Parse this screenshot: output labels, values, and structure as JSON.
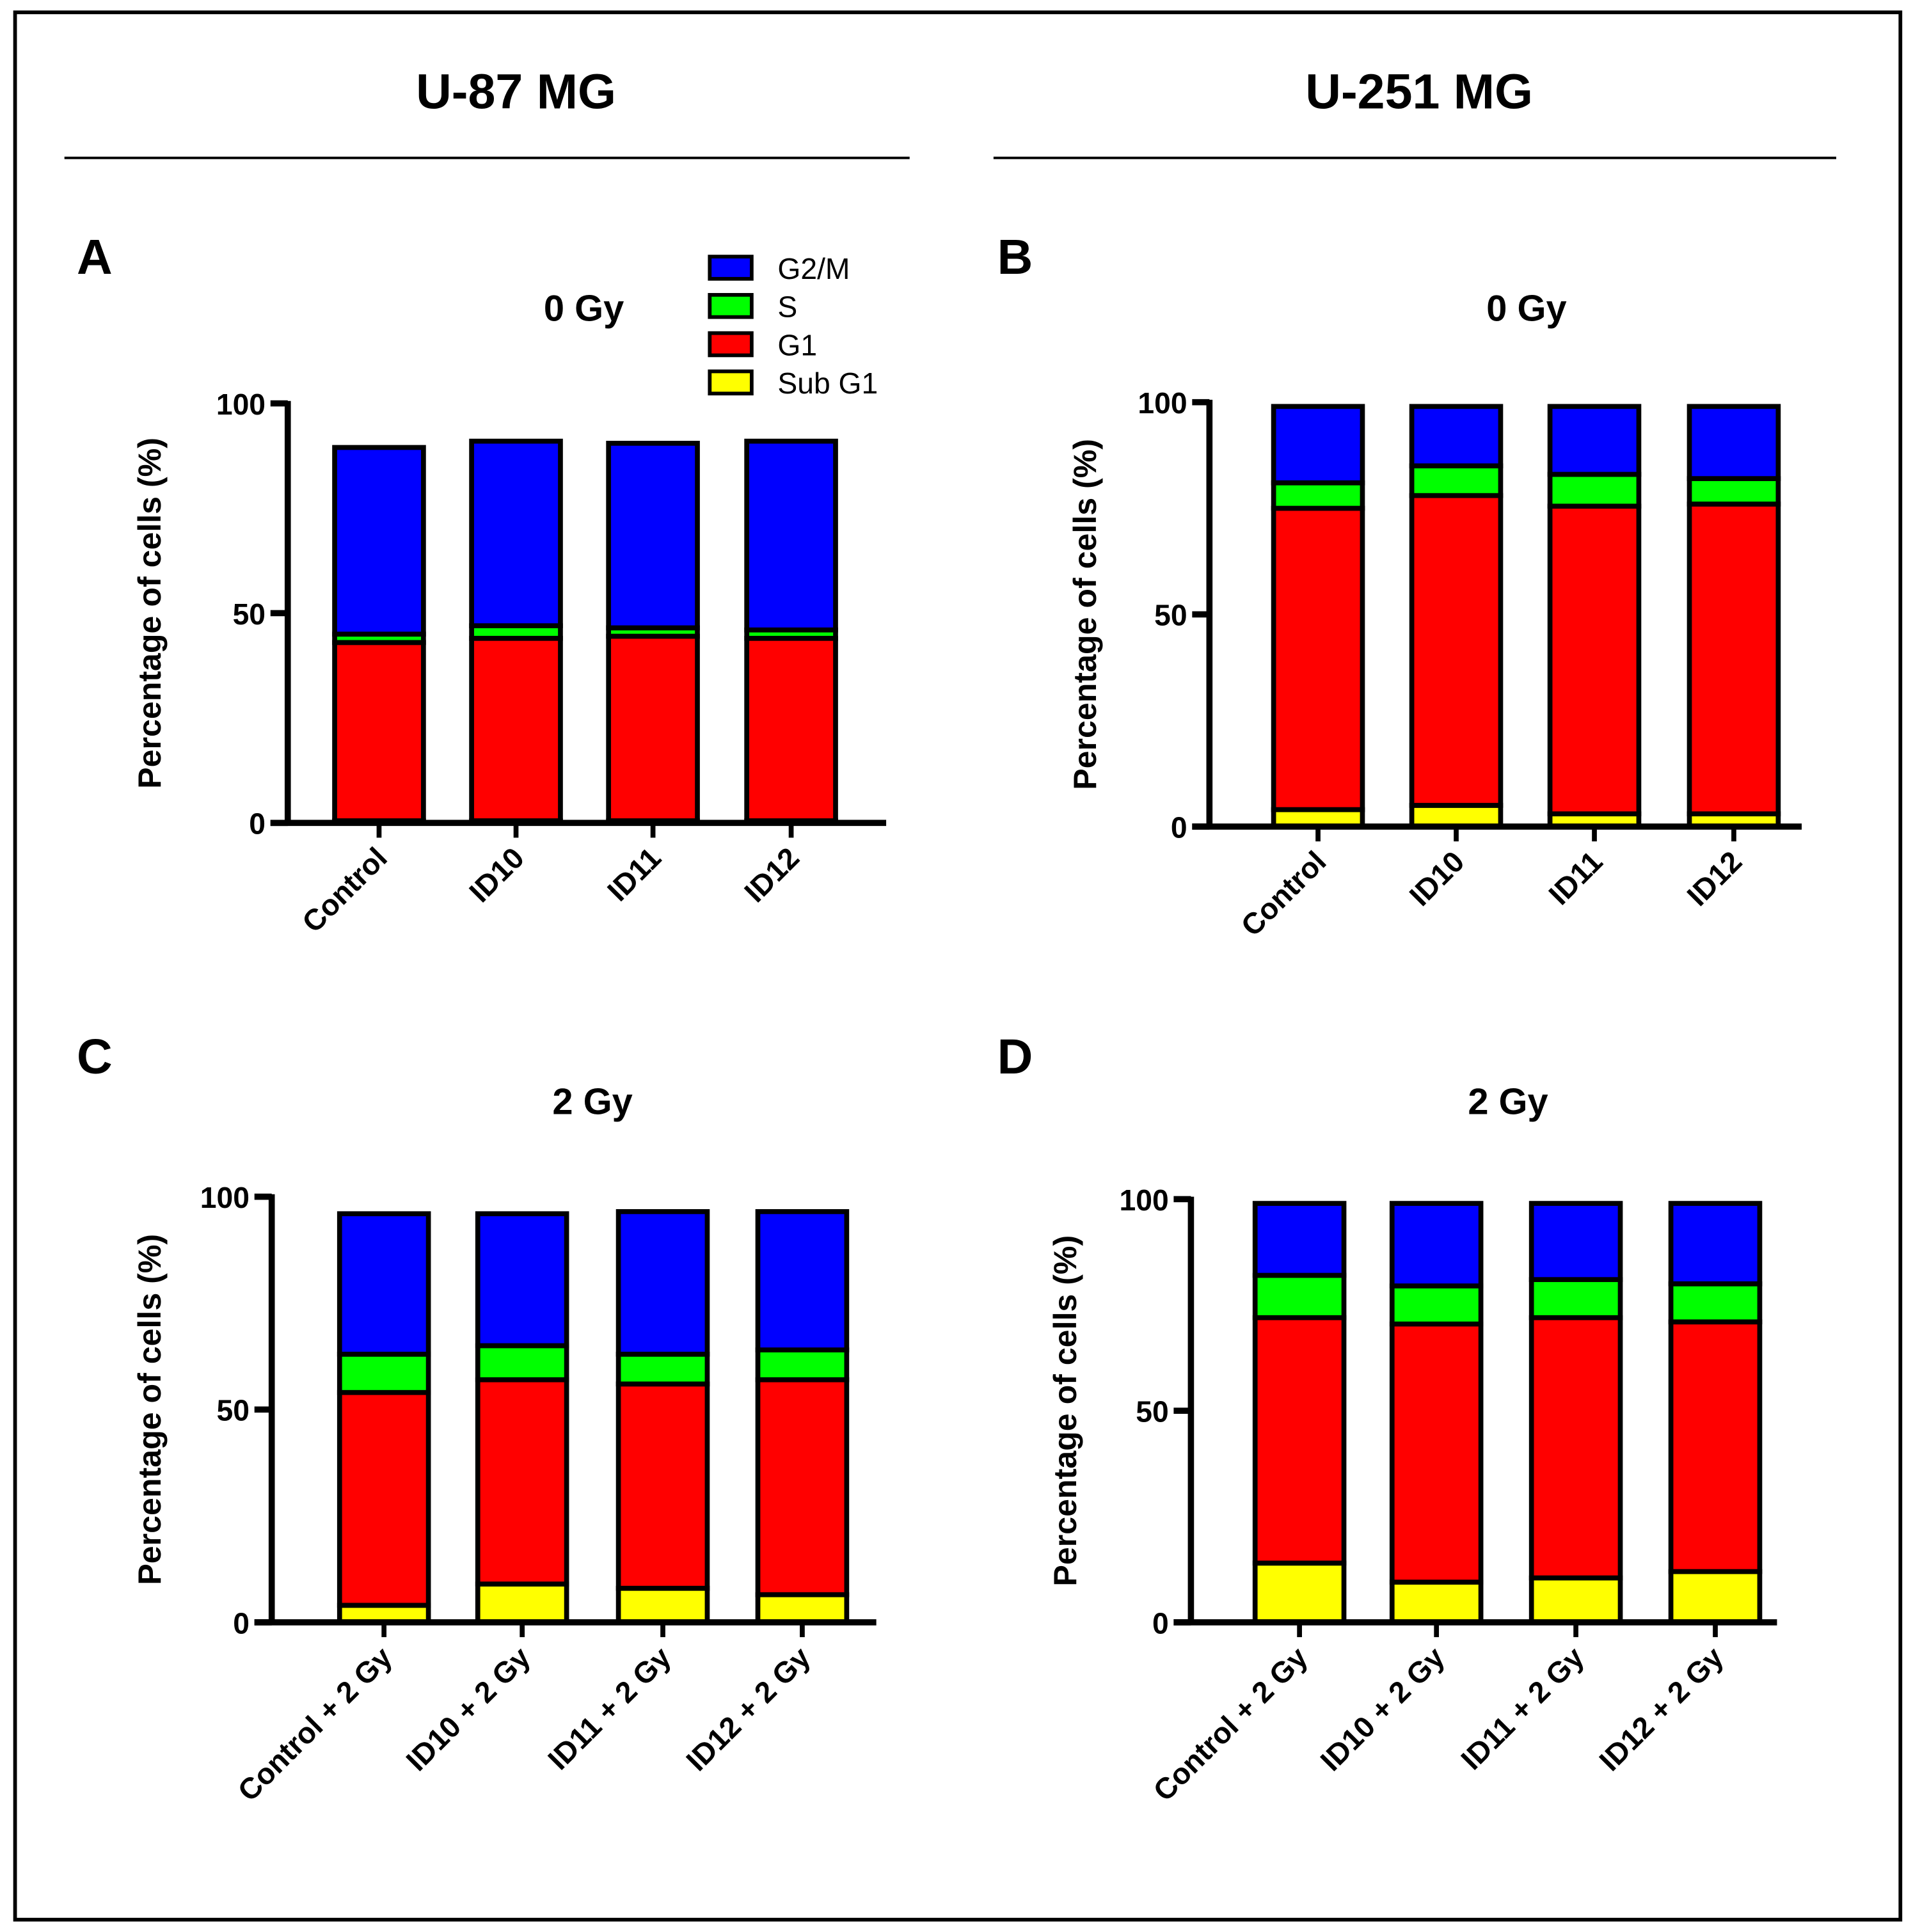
{
  "headers": [
    "U-87 MG",
    "U-251 MG"
  ],
  "legend": [
    {
      "label": "G2/M",
      "color": "#0000ff"
    },
    {
      "label": "S",
      "color": "#00ff00"
    },
    {
      "label": "G1",
      "color": "#ff0000"
    },
    {
      "label": "Sub G1",
      "color": "#ffff00"
    }
  ],
  "chart_data": [
    {
      "panel": "A",
      "type": "bar",
      "stacked": true,
      "title": "0 Gy",
      "ylabel": "Percentage of cells (%)",
      "ylim": [
        0,
        100
      ],
      "yticks": [
        "0",
        "50",
        "100"
      ],
      "categories": [
        "Control",
        "ID10",
        "ID11",
        "ID12"
      ],
      "series": [
        {
          "name": "Sub G1",
          "values": [
            0.5,
            0.5,
            0.5,
            0.5
          ]
        },
        {
          "name": "G1",
          "values": [
            42.5,
            43.5,
            44,
            43.5
          ]
        },
        {
          "name": "S",
          "values": [
            2,
            3,
            2,
            2
          ]
        },
        {
          "name": "G2/M",
          "values": [
            44.5,
            44,
            44,
            45
          ]
        }
      ]
    },
    {
      "panel": "B",
      "type": "bar",
      "stacked": true,
      "title": "0 Gy",
      "ylabel": "Percentage of cells (%)",
      "ylim": [
        0,
        100
      ],
      "yticks": [
        "0",
        "50",
        "100"
      ],
      "categories": [
        "Control",
        "ID10",
        "ID11",
        "ID12"
      ],
      "series": [
        {
          "name": "Sub G1",
          "values": [
            4,
            5,
            3,
            3
          ]
        },
        {
          "name": "G1",
          "values": [
            71,
            73,
            72.5,
            73
          ]
        },
        {
          "name": "S",
          "values": [
            6,
            7,
            7.5,
            6
          ]
        },
        {
          "name": "G2/M",
          "values": [
            18,
            14,
            16,
            17
          ]
        }
      ]
    },
    {
      "panel": "C",
      "type": "bar",
      "stacked": true,
      "title": "2 Gy",
      "ylabel": "Percentage of cells (%)",
      "ylim": [
        0,
        100
      ],
      "yticks": [
        "0",
        "50",
        "100"
      ],
      "categories": [
        "Control + 2 Gy",
        "ID10 + 2 Gy",
        "ID11 + 2 Gy",
        "ID12 + 2 Gy"
      ],
      "series": [
        {
          "name": "Sub G1",
          "values": [
            4,
            9,
            8,
            6.5
          ]
        },
        {
          "name": "G1",
          "values": [
            50,
            48,
            48,
            50.5
          ]
        },
        {
          "name": "S",
          "values": [
            9,
            8,
            7,
            7
          ]
        },
        {
          "name": "G2/M",
          "values": [
            33,
            31,
            33.5,
            32.5
          ]
        }
      ]
    },
    {
      "panel": "D",
      "type": "bar",
      "stacked": true,
      "title": "2 Gy",
      "ylabel": "Percentage of cells (%)",
      "ylim": [
        0,
        100
      ],
      "yticks": [
        "0",
        "50",
        "100"
      ],
      "categories": [
        "Control + 2 Gy",
        "ID10 + 2 Gy",
        "ID11 + 2 Gy",
        "ID12 + 2 Gy"
      ],
      "series": [
        {
          "name": "Sub G1",
          "values": [
            14,
            9.5,
            10.5,
            12
          ]
        },
        {
          "name": "G1",
          "values": [
            58,
            61,
            61.5,
            59
          ]
        },
        {
          "name": "S",
          "values": [
            10,
            9,
            9,
            9
          ]
        },
        {
          "name": "G2/M",
          "values": [
            17,
            19.5,
            18,
            19
          ]
        }
      ]
    }
  ]
}
